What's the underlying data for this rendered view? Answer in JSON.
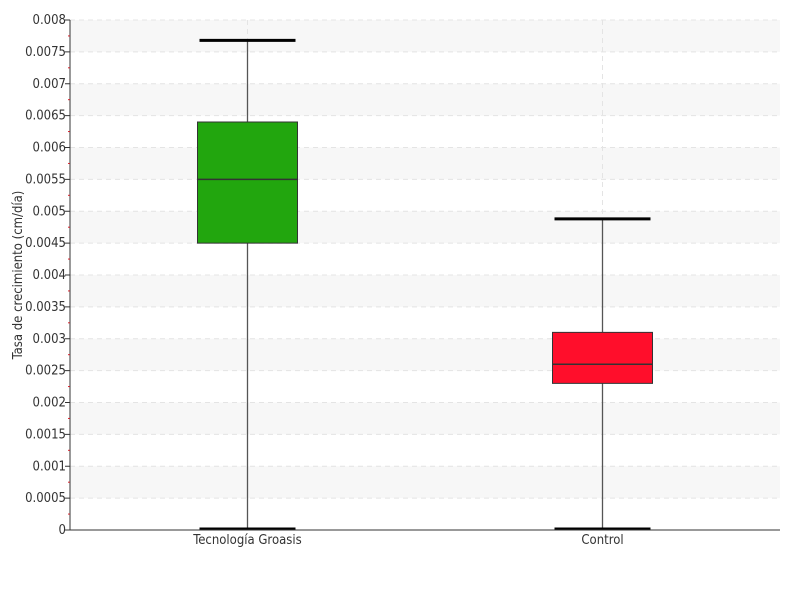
{
  "chart_data": {
    "type": "box",
    "title": "",
    "xlabel": "",
    "ylabel": "Tasa de crecimiento (cm/día)",
    "ylim": [
      0,
      0.008
    ],
    "y_ticks": [
      {
        "value": 0,
        "label": "0"
      },
      {
        "value": 0.0005,
        "label": "0.0005"
      },
      {
        "value": 0.001,
        "label": "0.001"
      },
      {
        "value": 0.0015,
        "label": "0.0015"
      },
      {
        "value": 0.002,
        "label": "0.002"
      },
      {
        "value": 0.0025,
        "label": "0.0025"
      },
      {
        "value": 0.003,
        "label": "0.003"
      },
      {
        "value": 0.0035,
        "label": "0.0035"
      },
      {
        "value": 0.004,
        "label": "0.004"
      },
      {
        "value": 0.0045,
        "label": "0.0045"
      },
      {
        "value": 0.005,
        "label": "0.005"
      },
      {
        "value": 0.0055,
        "label": "0.0055"
      },
      {
        "value": 0.006,
        "label": "0.006"
      },
      {
        "value": 0.0065,
        "label": "0.0065"
      },
      {
        "value": 0.007,
        "label": "0.007"
      },
      {
        "value": 0.0075,
        "label": "0.0075"
      },
      {
        "value": 0.008,
        "label": "0.008"
      }
    ],
    "grid": true,
    "boxes": [
      {
        "category": "Tecnología Groasis",
        "min": 0.0,
        "q1": 0.0045,
        "median": 0.0055,
        "q3": 0.0064,
        "max": 0.00768,
        "color": "#22a60e"
      },
      {
        "category": "Control",
        "min": 0.0,
        "q1": 0.0023,
        "median": 0.0026,
        "q3": 0.0031,
        "max": 0.00488,
        "color": "#ff0e2b"
      }
    ]
  }
}
